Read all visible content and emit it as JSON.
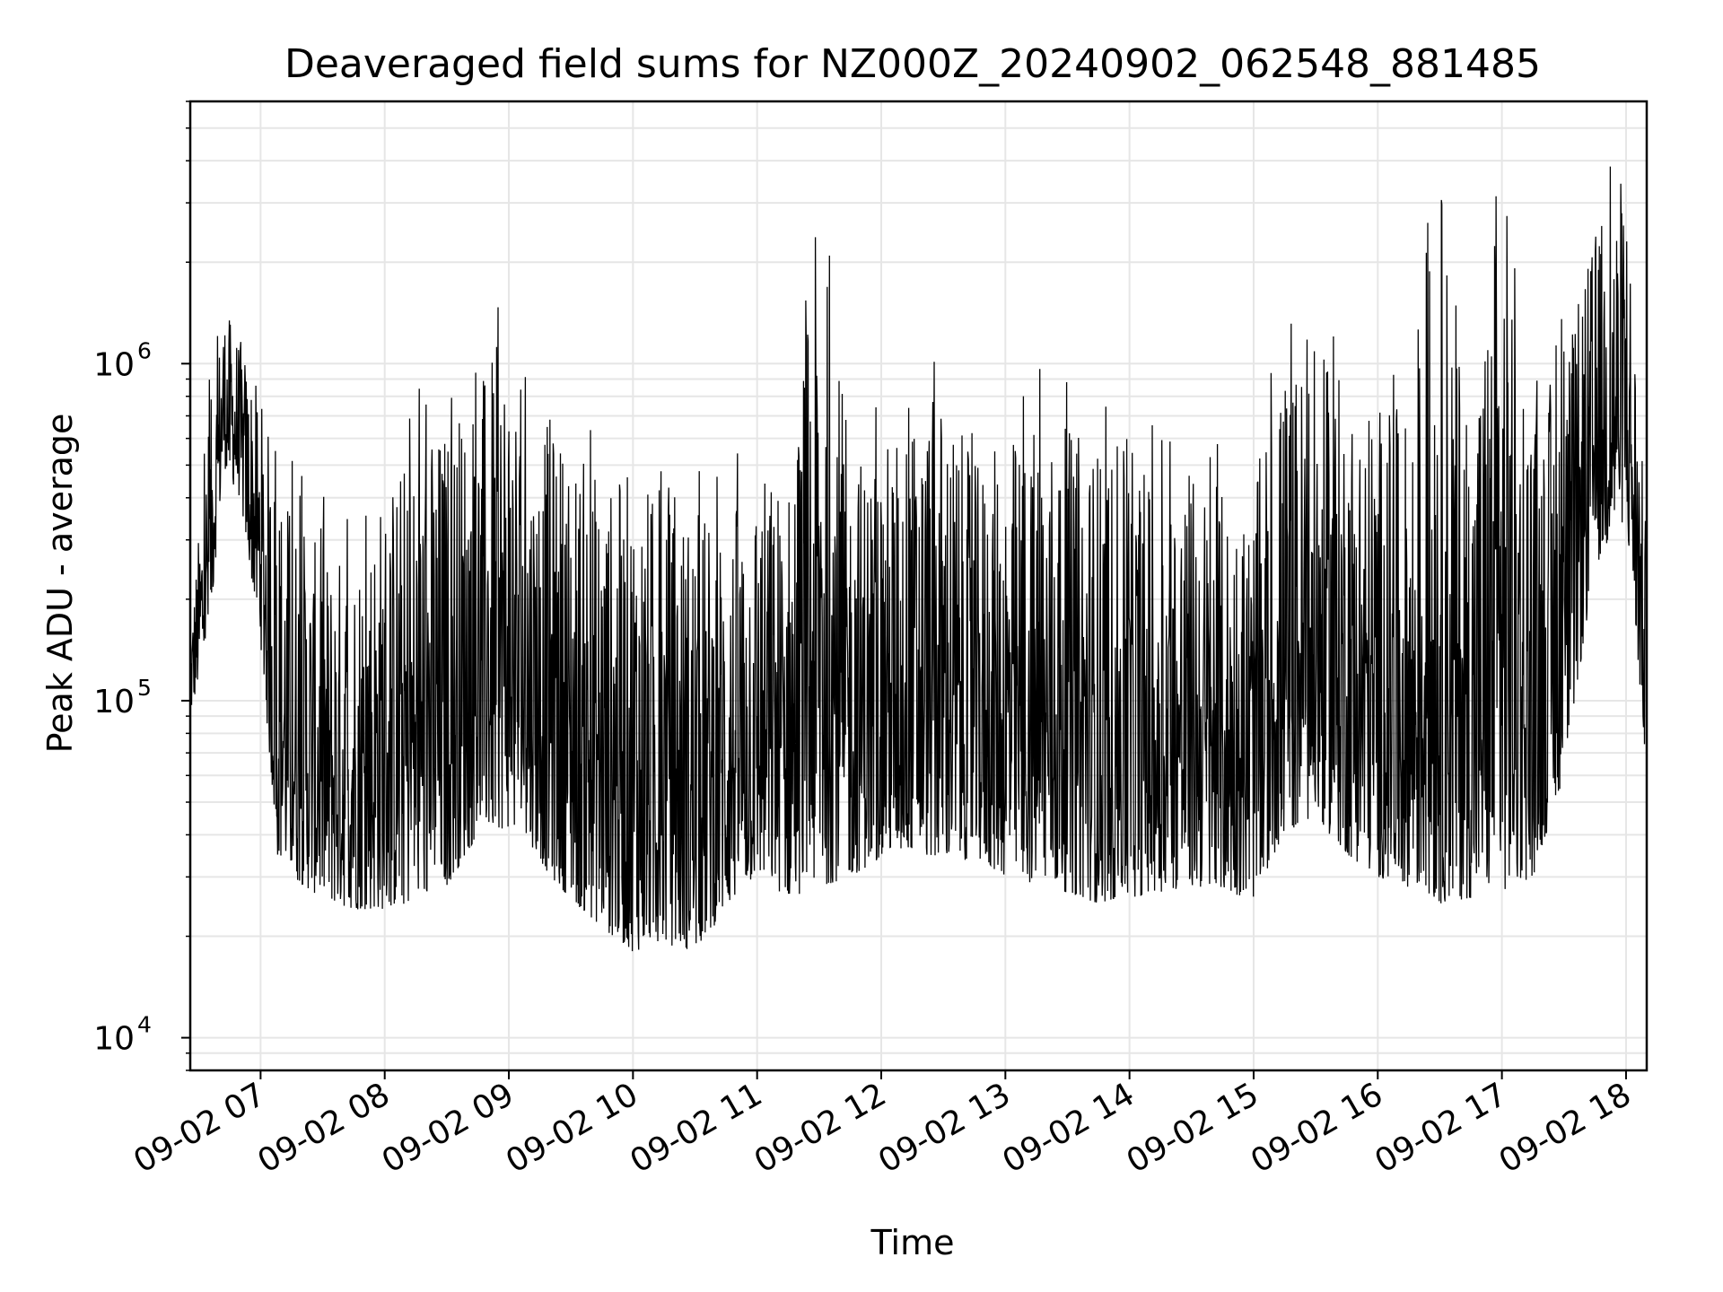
{
  "chart_data": {
    "type": "line",
    "title": "Deaveraged field sums for NZ000Z_20240902_062548_881485",
    "xlabel": "Time",
    "ylabel": "Peak ADU - average",
    "x_scale": "time",
    "y_scale": "log",
    "xlim": [
      "2024-09-02 06:26",
      "2024-09-02 18:10"
    ],
    "ylim": [
      8000,
      6000000
    ],
    "x_tick_labels": [
      "09-02 07",
      "09-02 08",
      "09-02 09",
      "09-02 10",
      "09-02 11",
      "09-02 12",
      "09-02 13",
      "09-02 14",
      "09-02 15",
      "09-02 16",
      "09-02 17",
      "09-02 18"
    ],
    "y_tick_labels": [
      {
        "value": 10000,
        "base": "10",
        "exp": "4"
      },
      {
        "value": 100000,
        "base": "10",
        "exp": "5"
      },
      {
        "value": 1000000,
        "base": "10",
        "exp": "6"
      }
    ],
    "grid": true,
    "line_color": "#000000",
    "series": [
      {
        "note": "dense noisy signal; approximate envelope samples (time, lower, upper) read from the plot",
        "x": [
          "06:26",
          "06:35",
          "06:42",
          "06:50",
          "07:00",
          "07:08",
          "07:15",
          "07:25",
          "07:35",
          "07:45",
          "08:00",
          "08:15",
          "08:30",
          "08:45",
          "09:00",
          "09:10",
          "09:20",
          "09:35",
          "09:50",
          "10:00",
          "10:15",
          "10:30",
          "10:45",
          "11:00",
          "11:15",
          "11:30",
          "11:45",
          "12:00",
          "12:15",
          "12:30",
          "12:45",
          "13:00",
          "13:15",
          "13:30",
          "13:45",
          "14:00",
          "14:15",
          "14:30",
          "14:45",
          "15:00",
          "15:15",
          "15:30",
          "15:45",
          "16:00",
          "16:15",
          "16:30",
          "16:45",
          "17:00",
          "17:15",
          "17:30",
          "17:45",
          "18:00",
          "18:10"
        ],
        "lower": [
          90000,
          150000,
          500000,
          400000,
          150000,
          35000,
          30000,
          27000,
          25000,
          24000,
          24000,
          25000,
          28000,
          40000,
          42000,
          38000,
          30000,
          24000,
          20000,
          18000,
          19000,
          18000,
          24000,
          30000,
          26000,
          28000,
          30000,
          34000,
          36000,
          33000,
          34000,
          30000,
          28000,
          27000,
          25000,
          26000,
          27000,
          28000,
          27000,
          26000,
          40000,
          45000,
          35000,
          30000,
          28000,
          25000,
          26000,
          27000,
          30000,
          60000,
          250000,
          350000,
          60000
        ],
        "upper": [
          160000,
          700000,
          1500000,
          1200000,
          800000,
          500000,
          400000,
          300000,
          280000,
          300000,
          450000,
          600000,
          700000,
          900000,
          1300000,
          600000,
          700000,
          550000,
          450000,
          500000,
          400000,
          380000,
          350000,
          500000,
          450000,
          3000000,
          550000,
          600000,
          700000,
          850000,
          500000,
          600000,
          700000,
          650000,
          600000,
          550000,
          500000,
          500000,
          420000,
          400000,
          1000000,
          1100000,
          900000,
          800000,
          700000,
          3800000,
          700000,
          4000000,
          800000,
          1000000,
          2500000,
          4000000,
          300000
        ]
      }
    ]
  }
}
